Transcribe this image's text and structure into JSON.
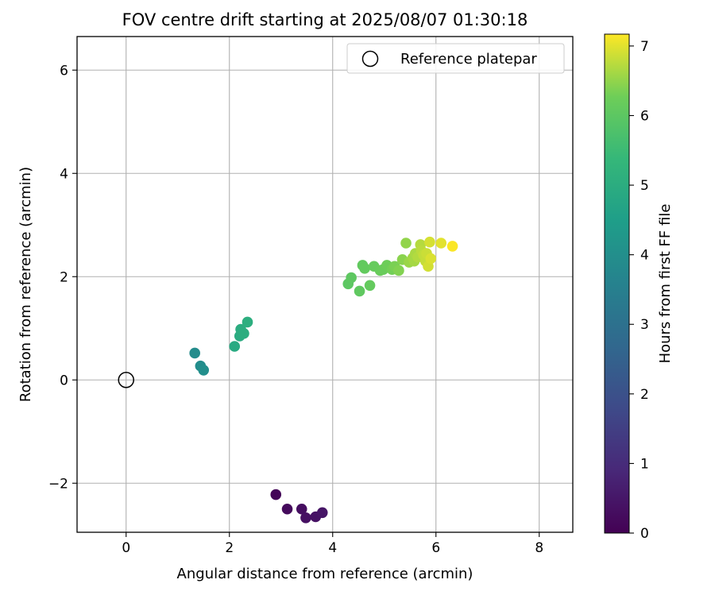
{
  "chart_data": {
    "type": "scatter",
    "title": "FOV centre drift starting at 2025/08/07 01:30:18",
    "xlabel": "Angular distance from reference (arcmin)",
    "ylabel": "Rotation from reference (arcmin)",
    "xlim": [
      -0.95,
      8.65
    ],
    "ylim": [
      -2.95,
      6.65
    ],
    "xticks": [
      0,
      2,
      4,
      6,
      8
    ],
    "yticks": [
      -2,
      0,
      2,
      4,
      6
    ],
    "ytick_labels": [
      "−2",
      "0",
      "2",
      "4",
      "6"
    ],
    "xtick_labels": [
      "0",
      "2",
      "4",
      "6",
      "8"
    ],
    "grid": true,
    "legend": {
      "placement": "top-right",
      "entries": [
        "Reference platepar"
      ]
    },
    "colorbar": {
      "label": "Hours from first FF file",
      "min": 0,
      "max": 7.17,
      "ticks": [
        0,
        1,
        2,
        3,
        4,
        5,
        6,
        7
      ],
      "colormap": "viridis"
    },
    "reference_point": {
      "name": "Reference platepar",
      "x": 0,
      "y": 0
    },
    "points": [
      {
        "x": 2.9,
        "y": -2.22,
        "c": 0.1
      },
      {
        "x": 3.12,
        "y": -2.5,
        "c": 0.2
      },
      {
        "x": 3.4,
        "y": -2.5,
        "c": 0.3
      },
      {
        "x": 3.48,
        "y": -2.67,
        "c": 0.35
      },
      {
        "x": 3.67,
        "y": -2.65,
        "c": 0.4
      },
      {
        "x": 3.8,
        "y": -2.57,
        "c": 0.45
      },
      {
        "x": 1.33,
        "y": 0.52,
        "c": 3.9
      },
      {
        "x": 1.44,
        "y": 0.27,
        "c": 3.95
      },
      {
        "x": 1.5,
        "y": 0.19,
        "c": 4.0
      },
      {
        "x": 2.1,
        "y": 0.65,
        "c": 4.9
      },
      {
        "x": 2.2,
        "y": 0.85,
        "c": 4.95
      },
      {
        "x": 2.22,
        "y": 0.98,
        "c": 5.0
      },
      {
        "x": 2.28,
        "y": 0.9,
        "c": 5.02
      },
      {
        "x": 2.35,
        "y": 1.12,
        "c": 5.05
      },
      {
        "x": 4.3,
        "y": 1.86,
        "c": 6.0
      },
      {
        "x": 4.36,
        "y": 1.98,
        "c": 6.02
      },
      {
        "x": 4.52,
        "y": 1.72,
        "c": 6.05
      },
      {
        "x": 4.58,
        "y": 2.22,
        "c": 6.08
      },
      {
        "x": 4.62,
        "y": 2.16,
        "c": 6.1
      },
      {
        "x": 4.72,
        "y": 1.83,
        "c": 6.12
      },
      {
        "x": 4.8,
        "y": 2.2,
        "c": 6.15
      },
      {
        "x": 4.92,
        "y": 2.12,
        "c": 6.18
      },
      {
        "x": 4.98,
        "y": 2.14,
        "c": 6.2
      },
      {
        "x": 5.05,
        "y": 2.22,
        "c": 6.25
      },
      {
        "x": 5.15,
        "y": 2.14,
        "c": 6.3
      },
      {
        "x": 5.2,
        "y": 2.2,
        "c": 6.35
      },
      {
        "x": 5.28,
        "y": 2.12,
        "c": 6.4
      },
      {
        "x": 5.35,
        "y": 2.33,
        "c": 6.45
      },
      {
        "x": 5.42,
        "y": 2.65,
        "c": 6.5
      },
      {
        "x": 5.48,
        "y": 2.28,
        "c": 6.55
      },
      {
        "x": 5.55,
        "y": 2.36,
        "c": 6.6
      },
      {
        "x": 5.58,
        "y": 2.3,
        "c": 6.62
      },
      {
        "x": 5.6,
        "y": 2.45,
        "c": 6.65
      },
      {
        "x": 5.65,
        "y": 2.38,
        "c": 6.7
      },
      {
        "x": 5.7,
        "y": 2.62,
        "c": 6.72
      },
      {
        "x": 5.72,
        "y": 2.5,
        "c": 6.75
      },
      {
        "x": 5.76,
        "y": 2.42,
        "c": 6.8
      },
      {
        "x": 5.8,
        "y": 2.3,
        "c": 6.82
      },
      {
        "x": 5.82,
        "y": 2.45,
        "c": 6.85
      },
      {
        "x": 5.85,
        "y": 2.2,
        "c": 6.9
      },
      {
        "x": 5.88,
        "y": 2.67,
        "c": 6.92
      },
      {
        "x": 5.9,
        "y": 2.35,
        "c": 6.95
      },
      {
        "x": 6.1,
        "y": 2.65,
        "c": 7.0
      },
      {
        "x": 6.32,
        "y": 2.59,
        "c": 7.15
      }
    ]
  }
}
